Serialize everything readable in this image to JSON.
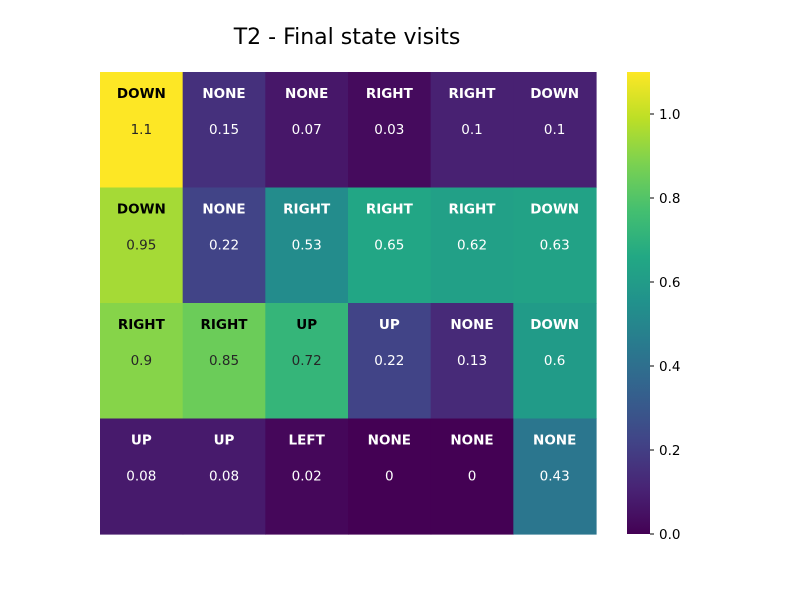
{
  "chart_data": {
    "type": "heatmap",
    "title": "T2 - Final state visits",
    "xlabel": "",
    "ylabel": "",
    "rows": 4,
    "cols": 6,
    "actions": [
      [
        "DOWN",
        "NONE",
        "NONE",
        "RIGHT",
        "RIGHT",
        "DOWN"
      ],
      [
        "DOWN",
        "NONE",
        "RIGHT",
        "RIGHT",
        "RIGHT",
        "DOWN"
      ],
      [
        "RIGHT",
        "RIGHT",
        "UP",
        "UP",
        "NONE",
        "DOWN"
      ],
      [
        "UP",
        "UP",
        "LEFT",
        "NONE",
        "NONE",
        "NONE"
      ]
    ],
    "values": [
      [
        1.1,
        0.15,
        0.07,
        0.03,
        0.1,
        0.1
      ],
      [
        0.95,
        0.22,
        0.53,
        0.65,
        0.62,
        0.63
      ],
      [
        0.9,
        0.85,
        0.72,
        0.22,
        0.13,
        0.6
      ],
      [
        0.08,
        0.08,
        0.02,
        0,
        0,
        0.43
      ]
    ],
    "colormap": "viridis",
    "colorbar": {
      "min": 0.0,
      "max": 1.1,
      "ticks": [
        "0.0",
        "0.2",
        "0.4",
        "0.6",
        "0.8",
        "1.0"
      ]
    }
  }
}
